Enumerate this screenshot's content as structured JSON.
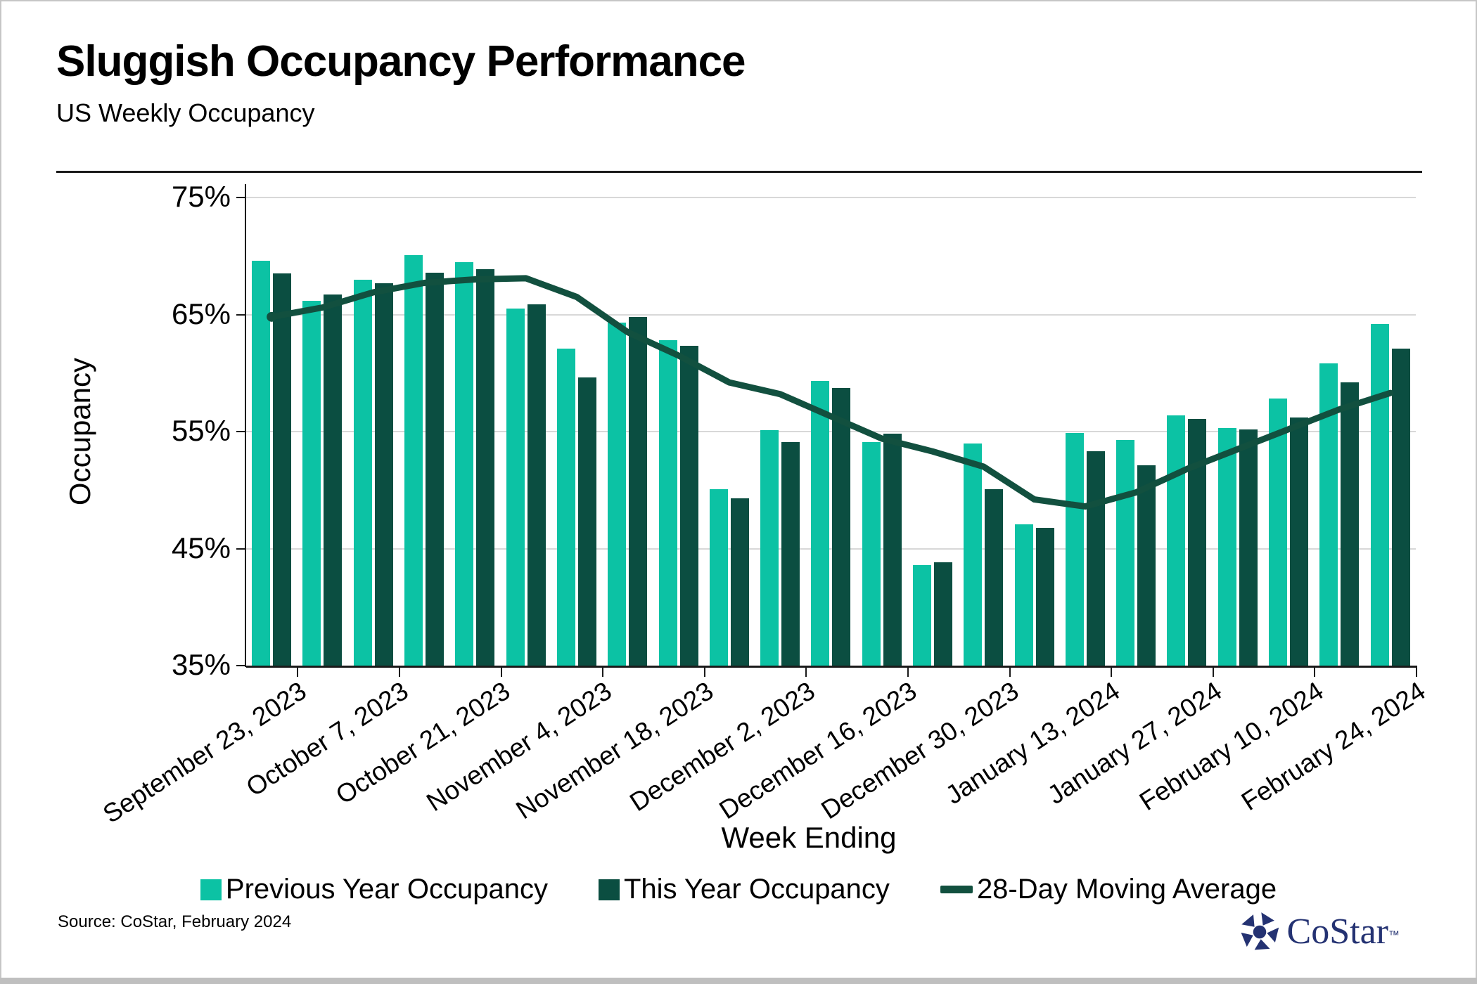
{
  "page": {
    "title": "Sluggish Occupancy Performance",
    "subtitle": "US Weekly Occupancy",
    "source": "Source: CoStar, February 2024",
    "logo_text": "CoStar",
    "logo_tm": "TM"
  },
  "colors": {
    "previous_year": "#0CC2A4",
    "this_year": "#0B4E41",
    "moving_average": "#12503F",
    "gridline": "#D8D8D8",
    "axis": "#1A1A1A",
    "logo_navy": "#243272"
  },
  "chart_data": {
    "type": "bar",
    "title": "Sluggish Occupancy Performance",
    "subtitle": "US Weekly Occupancy",
    "xlabel": "Week Ending",
    "ylabel": "Occupancy",
    "ylim": [
      35,
      75
    ],
    "yticks": [
      75,
      65,
      55,
      45,
      35
    ],
    "ytick_labels": [
      "75%",
      "65%",
      "55%",
      "45%",
      "35%"
    ],
    "grid": "horizontal gridlines at 75/65/55/45",
    "legend_position": "bottom",
    "categories": [
      "September 23, 2023",
      "September 30, 2023",
      "October 7, 2023",
      "October 14, 2023",
      "October 21, 2023",
      "October 28, 2023",
      "November 4, 2023",
      "November 11, 2023",
      "November 18, 2023",
      "November 25, 2023",
      "December 2, 2023",
      "December 9, 2023",
      "December 16, 2023",
      "December 23, 2023",
      "December 30, 2023",
      "January 6, 2024",
      "January 13, 2024",
      "January 20, 2024",
      "January 27, 2024",
      "February 3, 2024",
      "February 10, 2024",
      "February 17, 2024",
      "February 24, 2024"
    ],
    "x_tick_labels": [
      "September 23, 2023",
      "October 7, 2023",
      "October 21, 2023",
      "November 4, 2023",
      "November 18, 2023",
      "December 2, 2023",
      "December 16, 2023",
      "December 30, 2023",
      "January 13, 2024",
      "January 27, 2024",
      "February 10, 2024",
      "February 24, 2024"
    ],
    "series": [
      {
        "name": "Previous Year Occupancy",
        "type": "bar",
        "unit": "%",
        "values": [
          69.6,
          66.2,
          68.0,
          70.1,
          69.5,
          65.5,
          62.1,
          64.3,
          62.8,
          50.1,
          55.1,
          59.3,
          54.1,
          43.6,
          54.0,
          47.1,
          54.9,
          54.3,
          56.4,
          55.3,
          57.8,
          60.8,
          64.2
        ]
      },
      {
        "name": "This Year Occupancy",
        "type": "bar",
        "unit": "%",
        "values": [
          68.5,
          66.7,
          67.7,
          68.6,
          68.9,
          65.9,
          59.6,
          64.8,
          62.3,
          49.3,
          54.1,
          58.7,
          54.8,
          43.8,
          50.1,
          46.8,
          53.3,
          52.1,
          56.1,
          55.2,
          56.2,
          59.2,
          62.1
        ]
      },
      {
        "name": "28-Day Moving Average",
        "type": "line",
        "unit": "%",
        "values": [
          64.8,
          65.6,
          66.9,
          67.7,
          68.0,
          68.1,
          66.5,
          63.5,
          61.5,
          59.2,
          58.2,
          56.3,
          54.4,
          53.3,
          52.0,
          49.2,
          48.6,
          49.8,
          51.8,
          53.5,
          55.2,
          56.9,
          58.3
        ]
      }
    ]
  }
}
